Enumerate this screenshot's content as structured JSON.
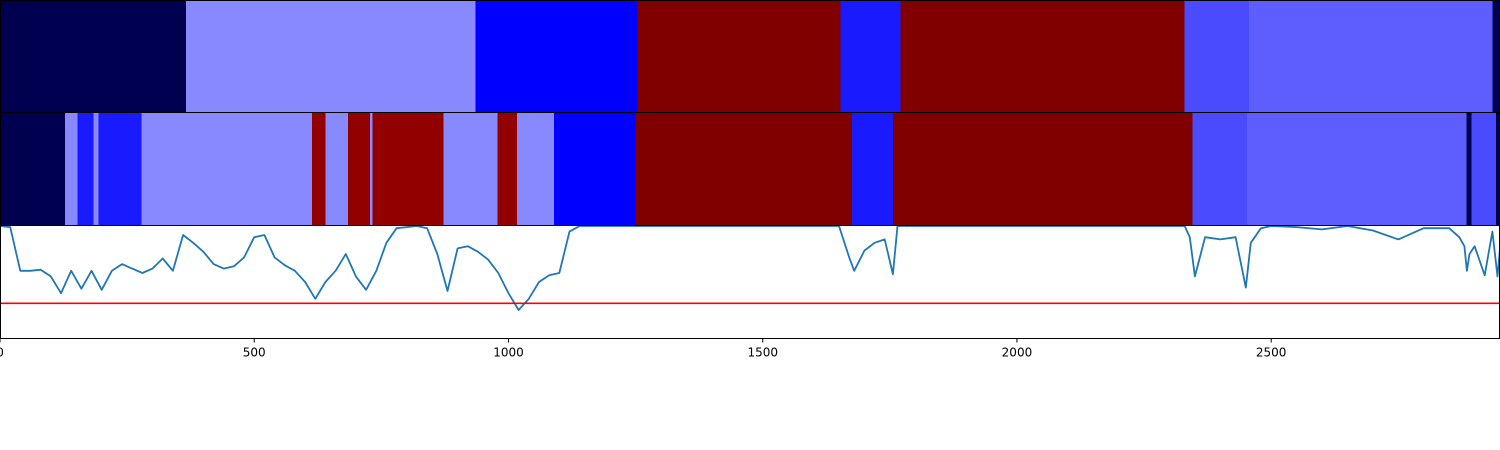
{
  "chart_data": {
    "type": "segmentation-bars-with-line",
    "x_axis": {
      "range": [
        0,
        2950
      ],
      "ticks": [
        0,
        500,
        1000,
        1500,
        2000,
        2500
      ],
      "tick_labels": [
        "0",
        "500",
        "1000",
        "1500",
        "2000",
        "2500"
      ]
    },
    "colors": {
      "navy": "#000050",
      "light": "#8888ff",
      "blue": "#0000ff",
      "blue2": "#1a1aff",
      "mid": "#4a4aff",
      "periw": "#5e5eff",
      "maroon": "#800000",
      "red": "#930000",
      "line": "#1f77b4",
      "threshold": "#ff0000"
    },
    "bar_top": [
      {
        "start": 0,
        "end": 366,
        "c": "navy"
      },
      {
        "start": 366,
        "end": 935,
        "c": "light"
      },
      {
        "start": 935,
        "end": 1253,
        "c": "blue"
      },
      {
        "start": 1253,
        "end": 1653,
        "c": "maroon"
      },
      {
        "start": 1653,
        "end": 1771,
        "c": "blue2"
      },
      {
        "start": 1771,
        "end": 2330,
        "c": "maroon"
      },
      {
        "start": 2330,
        "end": 2456,
        "c": "mid"
      },
      {
        "start": 2456,
        "end": 2935,
        "c": "periw"
      },
      {
        "start": 2935,
        "end": 2950,
        "c": "navy"
      }
    ],
    "bar_bottom": [
      {
        "start": 0,
        "end": 128,
        "c": "navy"
      },
      {
        "start": 128,
        "end": 152,
        "c": "light"
      },
      {
        "start": 152,
        "end": 184,
        "c": "blue2"
      },
      {
        "start": 184,
        "end": 194,
        "c": "light"
      },
      {
        "start": 194,
        "end": 278,
        "c": "blue2"
      },
      {
        "start": 278,
        "end": 614,
        "c": "light"
      },
      {
        "start": 614,
        "end": 640,
        "c": "red"
      },
      {
        "start": 640,
        "end": 684,
        "c": "light"
      },
      {
        "start": 684,
        "end": 728,
        "c": "red"
      },
      {
        "start": 728,
        "end": 733,
        "c": "light"
      },
      {
        "start": 733,
        "end": 872,
        "c": "red"
      },
      {
        "start": 872,
        "end": 978,
        "c": "light"
      },
      {
        "start": 978,
        "end": 1017,
        "c": "red"
      },
      {
        "start": 1017,
        "end": 1090,
        "c": "light"
      },
      {
        "start": 1090,
        "end": 1250,
        "c": "blue"
      },
      {
        "start": 1250,
        "end": 1676,
        "c": "maroon"
      },
      {
        "start": 1676,
        "end": 1756,
        "c": "blue2"
      },
      {
        "start": 1756,
        "end": 2345,
        "c": "maroon"
      },
      {
        "start": 2345,
        "end": 2452,
        "c": "mid"
      },
      {
        "start": 2452,
        "end": 2884,
        "c": "periw"
      },
      {
        "start": 2884,
        "end": 2894,
        "c": "navy"
      },
      {
        "start": 2894,
        "end": 2942,
        "c": "mid"
      },
      {
        "start": 2942,
        "end": 2950,
        "c": "navy"
      }
    ],
    "line_series": {
      "y_range": [
        0,
        1
      ],
      "threshold": 0.31,
      "x": [
        0,
        20,
        40,
        60,
        80,
        100,
        120,
        140,
        160,
        180,
        200,
        220,
        240,
        260,
        280,
        300,
        320,
        340,
        360,
        380,
        400,
        420,
        440,
        460,
        480,
        500,
        520,
        540,
        560,
        580,
        600,
        620,
        640,
        660,
        680,
        700,
        720,
        740,
        760,
        780,
        800,
        820,
        840,
        860,
        880,
        900,
        920,
        940,
        960,
        980,
        1000,
        1020,
        1040,
        1060,
        1080,
        1100,
        1120,
        1140,
        1200,
        1250,
        1300,
        1400,
        1500,
        1600,
        1650,
        1670,
        1680,
        1700,
        1720,
        1740,
        1756,
        1765,
        1800,
        1900,
        2000,
        2100,
        2200,
        2300,
        2330,
        2340,
        2350,
        2370,
        2400,
        2430,
        2450,
        2460,
        2480,
        2500,
        2550,
        2600,
        2650,
        2700,
        2750,
        2800,
        2850,
        2870,
        2880,
        2885,
        2890,
        2900,
        2920,
        2935,
        2945,
        2950
      ],
      "y": [
        1.0,
        0.99,
        0.6,
        0.6,
        0.61,
        0.55,
        0.4,
        0.6,
        0.44,
        0.6,
        0.43,
        0.6,
        0.66,
        0.62,
        0.58,
        0.62,
        0.71,
        0.6,
        0.92,
        0.85,
        0.77,
        0.66,
        0.62,
        0.64,
        0.72,
        0.9,
        0.92,
        0.72,
        0.65,
        0.6,
        0.5,
        0.35,
        0.5,
        0.6,
        0.75,
        0.55,
        0.43,
        0.6,
        0.85,
        0.98,
        0.99,
        1.0,
        0.98,
        0.75,
        0.42,
        0.8,
        0.82,
        0.77,
        0.7,
        0.58,
        0.4,
        0.25,
        0.35,
        0.5,
        0.56,
        0.58,
        0.95,
        1.0,
        1.0,
        1.0,
        1.0,
        1.0,
        1.0,
        1.0,
        1.0,
        0.72,
        0.6,
        0.78,
        0.85,
        0.88,
        0.57,
        1.0,
        1.0,
        1.0,
        1.0,
        1.0,
        1.0,
        1.0,
        1.0,
        0.9,
        0.55,
        0.9,
        0.88,
        0.9,
        0.45,
        0.85,
        0.98,
        1.0,
        0.99,
        0.97,
        1.0,
        0.96,
        0.88,
        0.98,
        0.98,
        0.9,
        0.82,
        0.6,
        0.75,
        0.82,
        0.56,
        0.95,
        0.55,
        0.8
      ]
    }
  }
}
